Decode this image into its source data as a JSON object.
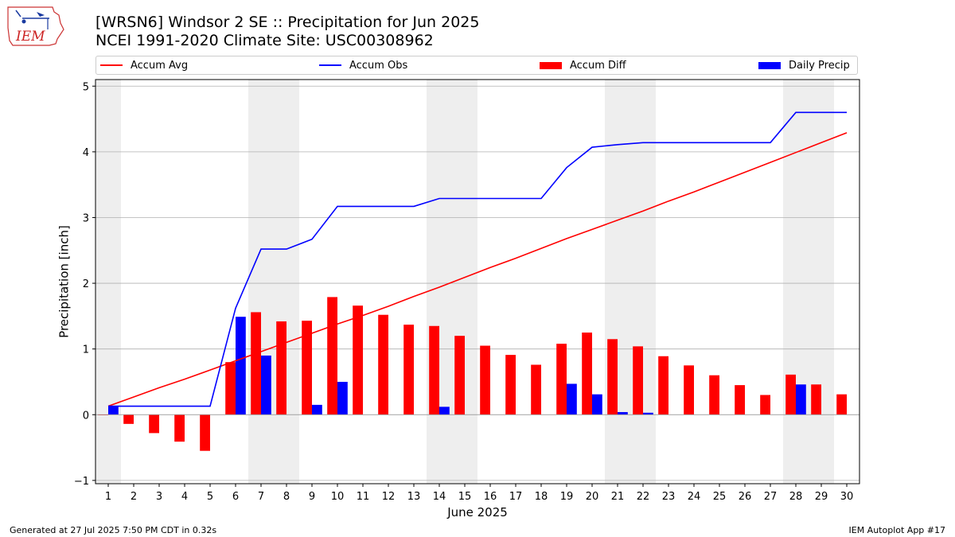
{
  "header": {
    "title": "[WRSN6] Windsor 2 SE :: Precipitation for Jun 2025",
    "subtitle": "NCEI 1991-2020 Climate Site: USC00308962",
    "logo_text": "IEM"
  },
  "footer": {
    "left": "Generated at 27 Jul 2025 7:50 PM CDT in 0.32s",
    "right": "IEM Autoplot App #17"
  },
  "colors": {
    "accum_avg": "#ff0000",
    "accum_obs": "#0000ff",
    "accum_diff": "#ff0000",
    "daily_precip": "#0000ff",
    "weekend_shade": "#eeeeee",
    "grid": "#b0b0b0"
  },
  "chart_data": {
    "type": "bar",
    "xlabel": "June 2025",
    "ylabel": "Precipitation [inch]",
    "ylim": [
      -1.05,
      5.1
    ],
    "yticks": [
      -1,
      0,
      1,
      2,
      3,
      4,
      5
    ],
    "xlim": [
      0.5,
      30.5
    ],
    "grid": "horizontal",
    "legend_placement": "top",
    "weekend_days": [
      1,
      7,
      8,
      14,
      15,
      21,
      22,
      28,
      29
    ],
    "categories": [
      1,
      2,
      3,
      4,
      5,
      6,
      7,
      8,
      9,
      10,
      11,
      12,
      13,
      14,
      15,
      16,
      17,
      18,
      19,
      20,
      21,
      22,
      23,
      24,
      25,
      26,
      27,
      28,
      29,
      30
    ],
    "series": [
      {
        "name": "Accum Avg",
        "kind": "line",
        "values": [
          0.13,
          0.27,
          0.41,
          0.54,
          0.68,
          0.82,
          0.96,
          1.1,
          1.24,
          1.38,
          1.51,
          1.65,
          1.8,
          1.94,
          2.09,
          2.24,
          2.38,
          2.53,
          2.68,
          2.82,
          2.96,
          3.1,
          3.25,
          3.39,
          3.54,
          3.69,
          3.84,
          3.99,
          4.14,
          4.29
        ]
      },
      {
        "name": "Accum Obs",
        "kind": "line",
        "values": [
          0.13,
          0.13,
          0.13,
          0.13,
          0.13,
          1.62,
          2.52,
          2.52,
          2.67,
          3.17,
          3.17,
          3.17,
          3.17,
          3.29,
          3.29,
          3.29,
          3.29,
          3.29,
          3.76,
          4.07,
          4.11,
          4.14,
          4.14,
          4.14,
          4.14,
          4.14,
          4.14,
          4.6,
          4.6,
          4.6
        ]
      },
      {
        "name": "Accum Diff",
        "kind": "bar",
        "values": [
          0.0,
          -0.14,
          -0.28,
          -0.41,
          -0.55,
          0.8,
          1.56,
          1.42,
          1.43,
          1.79,
          1.66,
          1.52,
          1.37,
          1.35,
          1.2,
          1.05,
          0.91,
          0.76,
          1.08,
          1.25,
          1.15,
          1.04,
          0.89,
          0.75,
          0.6,
          0.45,
          0.3,
          0.61,
          0.46,
          0.31
        ]
      },
      {
        "name": "Daily Precip",
        "kind": "bar",
        "values": [
          0.13,
          0,
          0,
          0,
          0,
          1.49,
          0.9,
          0,
          0.15,
          0.5,
          0,
          0,
          0,
          0.12,
          0,
          0,
          0,
          0,
          0.47,
          0.31,
          0.04,
          0.03,
          0,
          0,
          0,
          0,
          0,
          0.46,
          0,
          0
        ]
      }
    ]
  }
}
